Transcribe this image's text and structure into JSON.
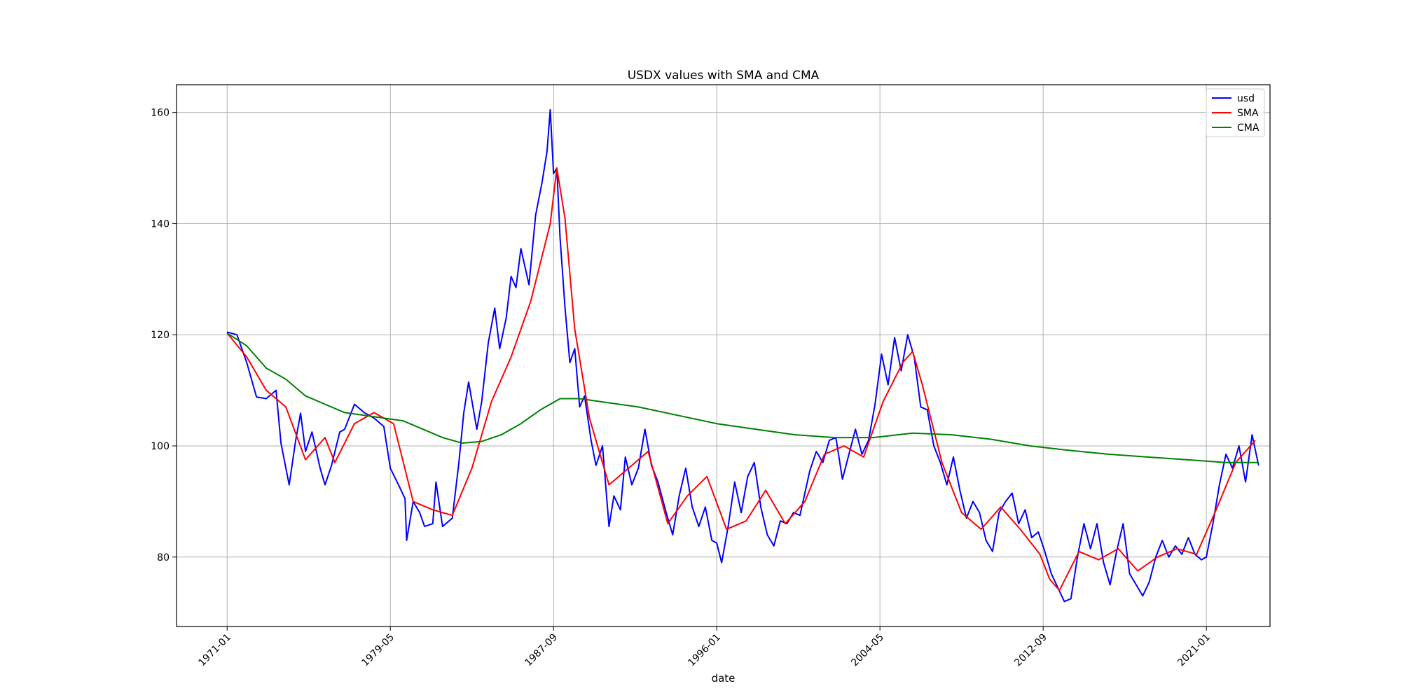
{
  "chart_data": {
    "type": "line",
    "title": "USDX values with SMA and CMA",
    "xlabel": "date",
    "ylabel": "",
    "x_tick_labels": [
      "1971-01",
      "1979-05",
      "1987-09",
      "1996-01",
      "2004-05",
      "2012-09",
      "2021-01"
    ],
    "y_ticks": [
      80,
      100,
      120,
      140,
      160
    ],
    "xlim": [
      "1968-06",
      "2024-04"
    ],
    "ylim": [
      67.5,
      165
    ],
    "grid": true,
    "legend_position": "top-right",
    "series": [
      {
        "name": "usd",
        "color": "#0000ff",
        "points": [
          [
            "1971-01",
            120.5
          ],
          [
            "1971-07",
            120.0
          ],
          [
            "1972-01",
            115.0
          ],
          [
            "1972-07",
            108.8
          ],
          [
            "1973-01",
            108.5
          ],
          [
            "1973-07",
            110.0
          ],
          [
            "1973-10",
            100.5
          ],
          [
            "1974-01",
            96.0
          ],
          [
            "1974-03",
            93.0
          ],
          [
            "1974-07",
            101.0
          ],
          [
            "1974-10",
            105.9
          ],
          [
            "1975-01",
            99.0
          ],
          [
            "1975-05",
            102.5
          ],
          [
            "1975-10",
            96.0
          ],
          [
            "1976-01",
            93.0
          ],
          [
            "1976-05",
            96.5
          ],
          [
            "1976-10",
            102.5
          ],
          [
            "1977-01",
            103.0
          ],
          [
            "1977-07",
            107.5
          ],
          [
            "1978-01",
            106.0
          ],
          [
            "1978-07",
            105.0
          ],
          [
            "1979-01",
            103.5
          ],
          [
            "1979-05",
            96.0
          ],
          [
            "1979-10",
            93.0
          ],
          [
            "1980-02",
            90.5
          ],
          [
            "1980-03",
            83.0
          ],
          [
            "1980-07",
            90.0
          ],
          [
            "1980-11",
            88.0
          ],
          [
            "1981-02",
            85.5
          ],
          [
            "1981-07",
            86.0
          ],
          [
            "1981-09",
            93.5
          ],
          [
            "1982-01",
            85.5
          ],
          [
            "1982-07",
            87.0
          ],
          [
            "1982-11",
            97.0
          ],
          [
            "1983-02",
            106.0
          ],
          [
            "1983-05",
            111.5
          ],
          [
            "1983-10",
            103.0
          ],
          [
            "1984-01",
            108.0
          ],
          [
            "1984-05",
            118.5
          ],
          [
            "1984-09",
            124.8
          ],
          [
            "1984-12",
            117.5
          ],
          [
            "1985-04",
            123.0
          ],
          [
            "1985-07",
            130.5
          ],
          [
            "1985-10",
            128.5
          ],
          [
            "1986-01",
            135.5
          ],
          [
            "1986-06",
            129.0
          ],
          [
            "1986-10",
            141.5
          ],
          [
            "1987-02",
            147.5
          ],
          [
            "1987-05",
            153.0
          ],
          [
            "1987-07",
            160.5
          ],
          [
            "1987-09",
            149.0
          ],
          [
            "1987-11",
            150.0
          ],
          [
            "1988-01",
            137.5
          ],
          [
            "1988-04",
            125.0
          ],
          [
            "1988-07",
            115.0
          ],
          [
            "1988-10",
            117.5
          ],
          [
            "1989-01",
            107.0
          ],
          [
            "1989-04",
            109.0
          ],
          [
            "1989-08",
            101.0
          ],
          [
            "1989-11",
            96.5
          ],
          [
            "1990-03",
            100.0
          ],
          [
            "1990-07",
            85.5
          ],
          [
            "1990-10",
            91.0
          ],
          [
            "1991-02",
            88.5
          ],
          [
            "1991-05",
            98.0
          ],
          [
            "1991-09",
            93.0
          ],
          [
            "1992-01",
            96.0
          ],
          [
            "1992-05",
            103.0
          ],
          [
            "1992-09",
            96.5
          ],
          [
            "1993-01",
            93.5
          ],
          [
            "1993-06",
            88.0
          ],
          [
            "1993-10",
            84.0
          ],
          [
            "1994-02",
            91.0
          ],
          [
            "1994-06",
            96.0
          ],
          [
            "1994-10",
            89.0
          ],
          [
            "1995-02",
            85.5
          ],
          [
            "1995-06",
            89.0
          ],
          [
            "1995-10",
            83.0
          ],
          [
            "1996-01",
            82.5
          ],
          [
            "1996-04",
            79.0
          ],
          [
            "1996-08",
            85.5
          ],
          [
            "1996-12",
            93.5
          ],
          [
            "1997-04",
            88.0
          ],
          [
            "1997-08",
            94.5
          ],
          [
            "1997-12",
            97.0
          ],
          [
            "1998-04",
            89.0
          ],
          [
            "1998-08",
            84.0
          ],
          [
            "1998-12",
            82.0
          ],
          [
            "1999-04",
            86.5
          ],
          [
            "1999-08",
            86.0
          ],
          [
            "1999-12",
            88.0
          ],
          [
            "2000-04",
            87.5
          ],
          [
            "2000-10",
            95.5
          ],
          [
            "2001-02",
            99.0
          ],
          [
            "2001-06",
            97.0
          ],
          [
            "2001-10",
            101.0
          ],
          [
            "2002-02",
            101.5
          ],
          [
            "2002-06",
            94.0
          ],
          [
            "2002-10",
            98.5
          ],
          [
            "2003-02",
            103.0
          ],
          [
            "2003-06",
            98.5
          ],
          [
            "2003-10",
            101.0
          ],
          [
            "2004-02",
            107.5
          ],
          [
            "2004-06",
            116.5
          ],
          [
            "2004-10",
            111.0
          ],
          [
            "2005-02",
            119.5
          ],
          [
            "2005-06",
            113.5
          ],
          [
            "2005-10",
            120.0
          ],
          [
            "2006-02",
            116.0
          ],
          [
            "2006-06",
            107.0
          ],
          [
            "2006-10",
            106.5
          ],
          [
            "2007-02",
            100.0
          ],
          [
            "2007-06",
            97.0
          ],
          [
            "2007-10",
            93.0
          ],
          [
            "2008-02",
            98.0
          ],
          [
            "2008-06",
            92.0
          ],
          [
            "2008-10",
            87.0
          ],
          [
            "2009-02",
            90.0
          ],
          [
            "2009-06",
            88.0
          ],
          [
            "2009-10",
            83.0
          ],
          [
            "2010-02",
            81.0
          ],
          [
            "2010-06",
            88.0
          ],
          [
            "2010-10",
            90.0
          ],
          [
            "2011-02",
            91.5
          ],
          [
            "2011-06",
            86.0
          ],
          [
            "2011-10",
            88.5
          ],
          [
            "2012-02",
            83.5
          ],
          [
            "2012-06",
            84.5
          ],
          [
            "2012-10",
            81.0
          ],
          [
            "2013-02",
            77.0
          ],
          [
            "2013-06",
            74.5
          ],
          [
            "2013-10",
            72.0
          ],
          [
            "2014-02",
            72.5
          ],
          [
            "2014-06",
            80.0
          ],
          [
            "2014-10",
            86.0
          ],
          [
            "2015-02",
            81.5
          ],
          [
            "2015-06",
            86.0
          ],
          [
            "2015-10",
            79.0
          ],
          [
            "2016-02",
            75.0
          ],
          [
            "2016-06",
            81.0
          ],
          [
            "2016-10",
            86.0
          ],
          [
            "2017-02",
            77.0
          ],
          [
            "2017-06",
            75.0
          ],
          [
            "2017-10",
            73.0
          ],
          [
            "2018-02",
            75.5
          ],
          [
            "2018-06",
            80.0
          ],
          [
            "2018-10",
            83.0
          ],
          [
            "2019-02",
            80.0
          ],
          [
            "2019-06",
            82.0
          ],
          [
            "2019-10",
            80.5
          ],
          [
            "2020-02",
            83.5
          ],
          [
            "2020-06",
            80.5
          ],
          [
            "2020-10",
            79.5
          ],
          [
            "2021-01",
            80.0
          ],
          [
            "2021-05",
            86.0
          ],
          [
            "2021-09",
            93.0
          ],
          [
            "2022-01",
            98.5
          ],
          [
            "2022-05",
            96.0
          ],
          [
            "2022-09",
            100.0
          ],
          [
            "2023-01",
            93.5
          ],
          [
            "2023-05",
            102.0
          ],
          [
            "2023-09",
            96.5
          ]
        ]
      },
      {
        "name": "SMA",
        "color": "#ff0000",
        "points": [
          [
            "1971-01",
            120.3
          ],
          [
            "1972-01",
            116.0
          ],
          [
            "1973-01",
            110.0
          ],
          [
            "1974-01",
            107.0
          ],
          [
            "1975-01",
            97.5
          ],
          [
            "1976-01",
            101.5
          ],
          [
            "1976-07",
            97.0
          ],
          [
            "1977-07",
            104.0
          ],
          [
            "1978-07",
            106.0
          ],
          [
            "1979-07",
            104.0
          ],
          [
            "1980-07",
            90.0
          ],
          [
            "1981-07",
            88.5
          ],
          [
            "1982-07",
            87.5
          ],
          [
            "1983-07",
            96.0
          ],
          [
            "1984-07",
            108.0
          ],
          [
            "1985-07",
            116.0
          ],
          [
            "1986-07",
            126.0
          ],
          [
            "1987-07",
            140.0
          ],
          [
            "1987-11",
            150.0
          ],
          [
            "1988-04",
            141.0
          ],
          [
            "1988-10",
            121.0
          ],
          [
            "1989-07",
            105.0
          ],
          [
            "1990-07",
            93.0
          ],
          [
            "1991-07",
            96.0
          ],
          [
            "1992-07",
            99.0
          ],
          [
            "1993-07",
            86.0
          ],
          [
            "1994-07",
            91.0
          ],
          [
            "1995-07",
            94.5
          ],
          [
            "1996-07",
            85.0
          ],
          [
            "1997-07",
            86.5
          ],
          [
            "1998-07",
            92.0
          ],
          [
            "1999-07",
            86.0
          ],
          [
            "2000-07",
            90.0
          ],
          [
            "2001-07",
            98.5
          ],
          [
            "2002-07",
            100.0
          ],
          [
            "2003-07",
            98.0
          ],
          [
            "2004-07",
            108.0
          ],
          [
            "2005-07",
            115.0
          ],
          [
            "2006-01",
            117.0
          ],
          [
            "2006-07",
            111.0
          ],
          [
            "2007-07",
            97.0
          ],
          [
            "2008-07",
            88.0
          ],
          [
            "2009-07",
            85.0
          ],
          [
            "2010-07",
            89.0
          ],
          [
            "2011-07",
            85.0
          ],
          [
            "2012-07",
            80.5
          ],
          [
            "2013-01",
            76.0
          ],
          [
            "2013-07",
            74.0
          ],
          [
            "2014-07",
            81.0
          ],
          [
            "2015-07",
            79.5
          ],
          [
            "2016-07",
            81.5
          ],
          [
            "2017-07",
            77.5
          ],
          [
            "2018-07",
            80.0
          ],
          [
            "2019-07",
            81.5
          ],
          [
            "2020-07",
            80.5
          ],
          [
            "2021-07",
            88.5
          ],
          [
            "2022-07",
            97.0
          ],
          [
            "2023-07",
            101.0
          ]
        ]
      },
      {
        "name": "CMA",
        "color": "#008000",
        "points": [
          [
            "1971-01",
            120.3
          ],
          [
            "1972-01",
            118.0
          ],
          [
            "1973-01",
            114.0
          ],
          [
            "1974-01",
            112.0
          ],
          [
            "1975-01",
            109.0
          ],
          [
            "1976-01",
            107.5
          ],
          [
            "1977-01",
            106.0
          ],
          [
            "1978-01",
            105.5
          ],
          [
            "1979-01",
            105.0
          ],
          [
            "1980-01",
            104.5
          ],
          [
            "1981-01",
            103.0
          ],
          [
            "1982-01",
            101.5
          ],
          [
            "1983-01",
            100.5
          ],
          [
            "1984-01",
            100.8
          ],
          [
            "1985-01",
            102.0
          ],
          [
            "1986-01",
            104.0
          ],
          [
            "1987-01",
            106.5
          ],
          [
            "1988-01",
            108.5
          ],
          [
            "1989-01",
            108.5
          ],
          [
            "1990-01",
            108.0
          ],
          [
            "1992-01",
            107.0
          ],
          [
            "1994-01",
            105.5
          ],
          [
            "1996-01",
            104.0
          ],
          [
            "1998-01",
            103.0
          ],
          [
            "2000-01",
            102.0
          ],
          [
            "2002-01",
            101.5
          ],
          [
            "2004-01",
            101.5
          ],
          [
            "2006-01",
            102.3
          ],
          [
            "2008-01",
            102.0
          ],
          [
            "2010-01",
            101.2
          ],
          [
            "2012-01",
            100.0
          ],
          [
            "2014-01",
            99.2
          ],
          [
            "2016-01",
            98.5
          ],
          [
            "2018-01",
            98.0
          ],
          [
            "2020-01",
            97.5
          ],
          [
            "2022-01",
            97.0
          ],
          [
            "2023-09",
            97.0
          ]
        ]
      }
    ]
  }
}
